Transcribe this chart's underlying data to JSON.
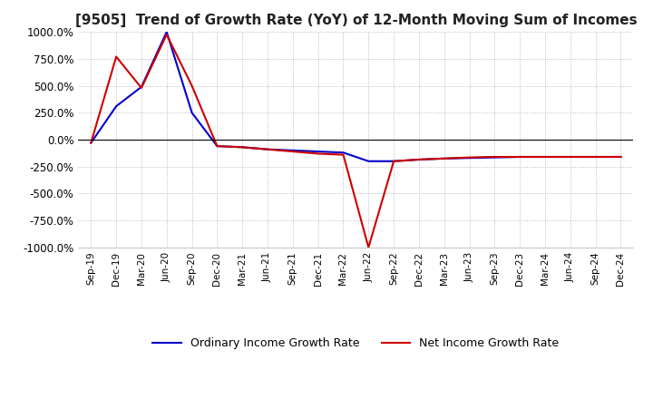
{
  "title": "[9505]  Trend of Growth Rate (YoY) of 12-Month Moving Sum of Incomes",
  "ylim": [
    -1000,
    1000
  ],
  "yticks": [
    -1000,
    -750,
    -500,
    -250,
    0,
    250,
    500,
    750,
    1000
  ],
  "ytick_labels": [
    "-1000.0%",
    "-750.0%",
    "-500.0%",
    "-250.0%",
    "0.0%",
    "250.0%",
    "500.0%",
    "750.0%",
    "1000.0%"
  ],
  "x_labels": [
    "Sep-19",
    "Dec-19",
    "Mar-20",
    "Jun-20",
    "Sep-20",
    "Dec-20",
    "Mar-21",
    "Jun-21",
    "Sep-21",
    "Dec-21",
    "Mar-22",
    "Jun-22",
    "Sep-22",
    "Dec-22",
    "Mar-23",
    "Jun-23",
    "Sep-23",
    "Dec-23",
    "Mar-24",
    "Jun-24",
    "Sep-24",
    "Dec-24"
  ],
  "ordinary_income": [
    -30,
    310,
    490,
    1000,
    250,
    -60,
    -70,
    -90,
    -100,
    -110,
    -120,
    -200,
    -200,
    -185,
    -175,
    -170,
    -165,
    -160,
    -160,
    -160,
    -160,
    -160
  ],
  "net_income": [
    -30,
    770,
    480,
    975,
    500,
    -60,
    -70,
    -90,
    -110,
    -130,
    -140,
    -1000,
    -200,
    -185,
    -175,
    -165,
    -160,
    -160,
    -160,
    -160,
    -160,
    -160
  ],
  "ordinary_color": "#0000cc",
  "net_color": "#cc0000",
  "background_color": "#ffffff",
  "grid_color": "#aaaaaa",
  "title_fontsize": 11,
  "legend_labels": [
    "Ordinary Income Growth Rate",
    "Net Income Growth Rate"
  ]
}
